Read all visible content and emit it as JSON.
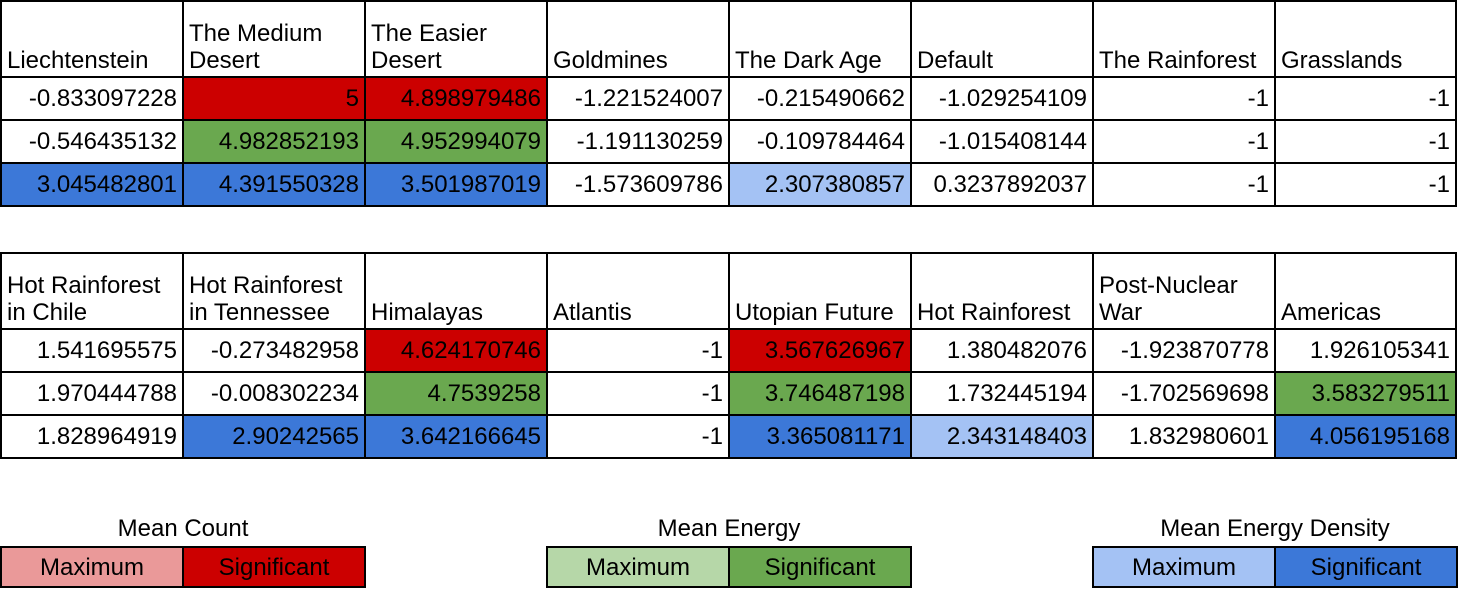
{
  "chart_data": {
    "type": "table",
    "tables": [
      {
        "columns": [
          "Liechtenstein",
          "The Medium Desert",
          "The Easier Desert",
          "Goldmines",
          "The Dark Age",
          "Default",
          "The Rainforest",
          "Grasslands"
        ],
        "rows": [
          [
            "-0.833097228",
            "5",
            "4.898979486",
            "-1.221524007",
            "-0.215490662",
            "-1.029254109",
            "-1",
            "-1"
          ],
          [
            "-0.546435132",
            "4.982852193",
            "4.952994079",
            "-1.191130259",
            "-0.109784464",
            "-1.015408144",
            "-1",
            "-1"
          ],
          [
            "3.045482801",
            "4.391550328",
            "3.501987019",
            "-1.573609786",
            "2.307380857",
            "0.3237892037",
            "-1",
            "-1"
          ]
        ],
        "highlights": [
          [
            "none",
            "red",
            "red",
            "none",
            "none",
            "none",
            "none",
            "none"
          ],
          [
            "none",
            "green",
            "green",
            "none",
            "none",
            "none",
            "none",
            "none"
          ],
          [
            "blue",
            "blue",
            "blue",
            "none",
            "lightblue",
            "none",
            "none",
            "none"
          ]
        ]
      },
      {
        "columns": [
          "Hot Rainforest in Chile",
          "Hot Rainforest in Tennessee",
          "Himalayas",
          "Atlantis",
          "Utopian Future",
          "Hot Rainforest",
          "Post-Nuclear War",
          "Americas"
        ],
        "rows": [
          [
            "1.541695575",
            "-0.273482958",
            "4.624170746",
            "-1",
            "3.567626967",
            "1.380482076",
            "-1.923870778",
            "1.926105341"
          ],
          [
            "1.970444788",
            "-0.008302234",
            "4.7539258",
            "-1",
            "3.746487198",
            "1.732445194",
            "-1.702569698",
            "3.583279511"
          ],
          [
            "1.828964919",
            "2.90242565",
            "3.642166645",
            "-1",
            "3.365081171",
            "2.343148403",
            "1.832980601",
            "4.056195168"
          ]
        ],
        "highlights": [
          [
            "none",
            "none",
            "red",
            "none",
            "red",
            "none",
            "none",
            "none"
          ],
          [
            "none",
            "none",
            "green",
            "none",
            "green",
            "none",
            "none",
            "green"
          ],
          [
            "none",
            "blue",
            "blue",
            "none",
            "blue",
            "lightblue",
            "none",
            "blue"
          ]
        ]
      }
    ],
    "highlight_colors": {
      "red": "#cc0000",
      "green": "#6aa84f",
      "blue": "#3c78d8",
      "lightblue": "#a4c2f4"
    },
    "legends": [
      {
        "title": "Mean Count",
        "maximum_label": "Maximum",
        "significant_label": "Significant",
        "maximum_color": "#ea9999",
        "significant_color": "#cc0000"
      },
      {
        "title": "Mean Energy",
        "maximum_label": "Maximum",
        "significant_label": "Significant",
        "maximum_color": "#b6d7a8",
        "significant_color": "#6aa84f"
      },
      {
        "title": "Mean Energy Density",
        "maximum_label": "Maximum",
        "significant_label": "Significant",
        "maximum_color": "#a4c2f4",
        "significant_color": "#3c78d8"
      }
    ]
  }
}
